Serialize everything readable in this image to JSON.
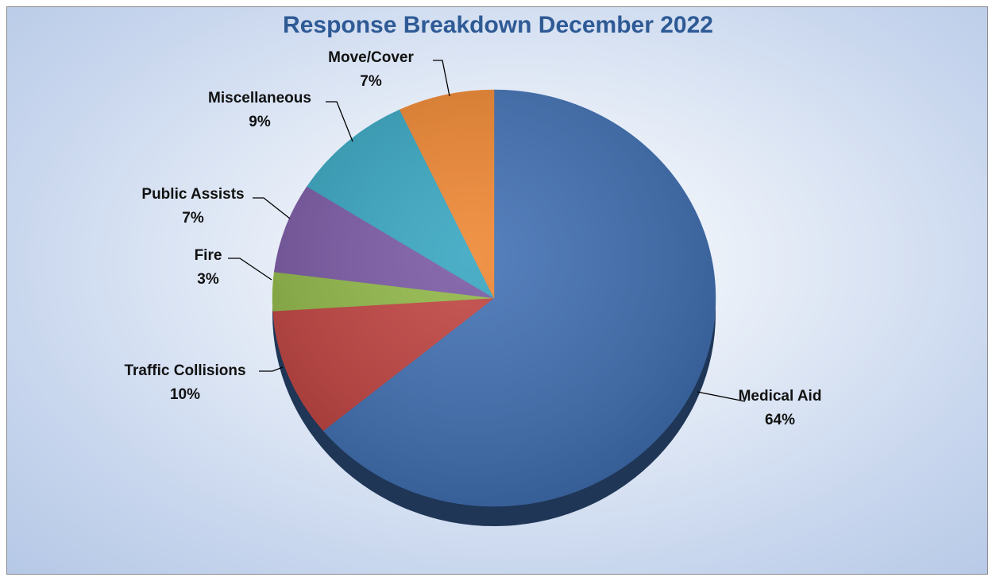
{
  "chart_data": {
    "type": "pie",
    "title": "Response Breakdown December 2022",
    "slices": [
      {
        "name": "Medical Aid",
        "value": 64,
        "label": "64%",
        "color": "#3f6fb3"
      },
      {
        "name": "Traffic Collisions",
        "value": 10,
        "label": "10%",
        "color": "#c0413e"
      },
      {
        "name": "Fire",
        "value": 3,
        "label": "3%",
        "color": "#8fb745"
      },
      {
        "name": "Public Assists",
        "value": 7,
        "label": "7%",
        "color": "#7857a3"
      },
      {
        "name": "Miscellaneous",
        "value": 9,
        "label": "9%",
        "color": "#35a5c0"
      },
      {
        "name": "Move/Cover",
        "value": 7,
        "label": "7%",
        "color": "#ee852f"
      }
    ],
    "legend": "none",
    "start_angle": "12 o'clock, clockwise"
  }
}
